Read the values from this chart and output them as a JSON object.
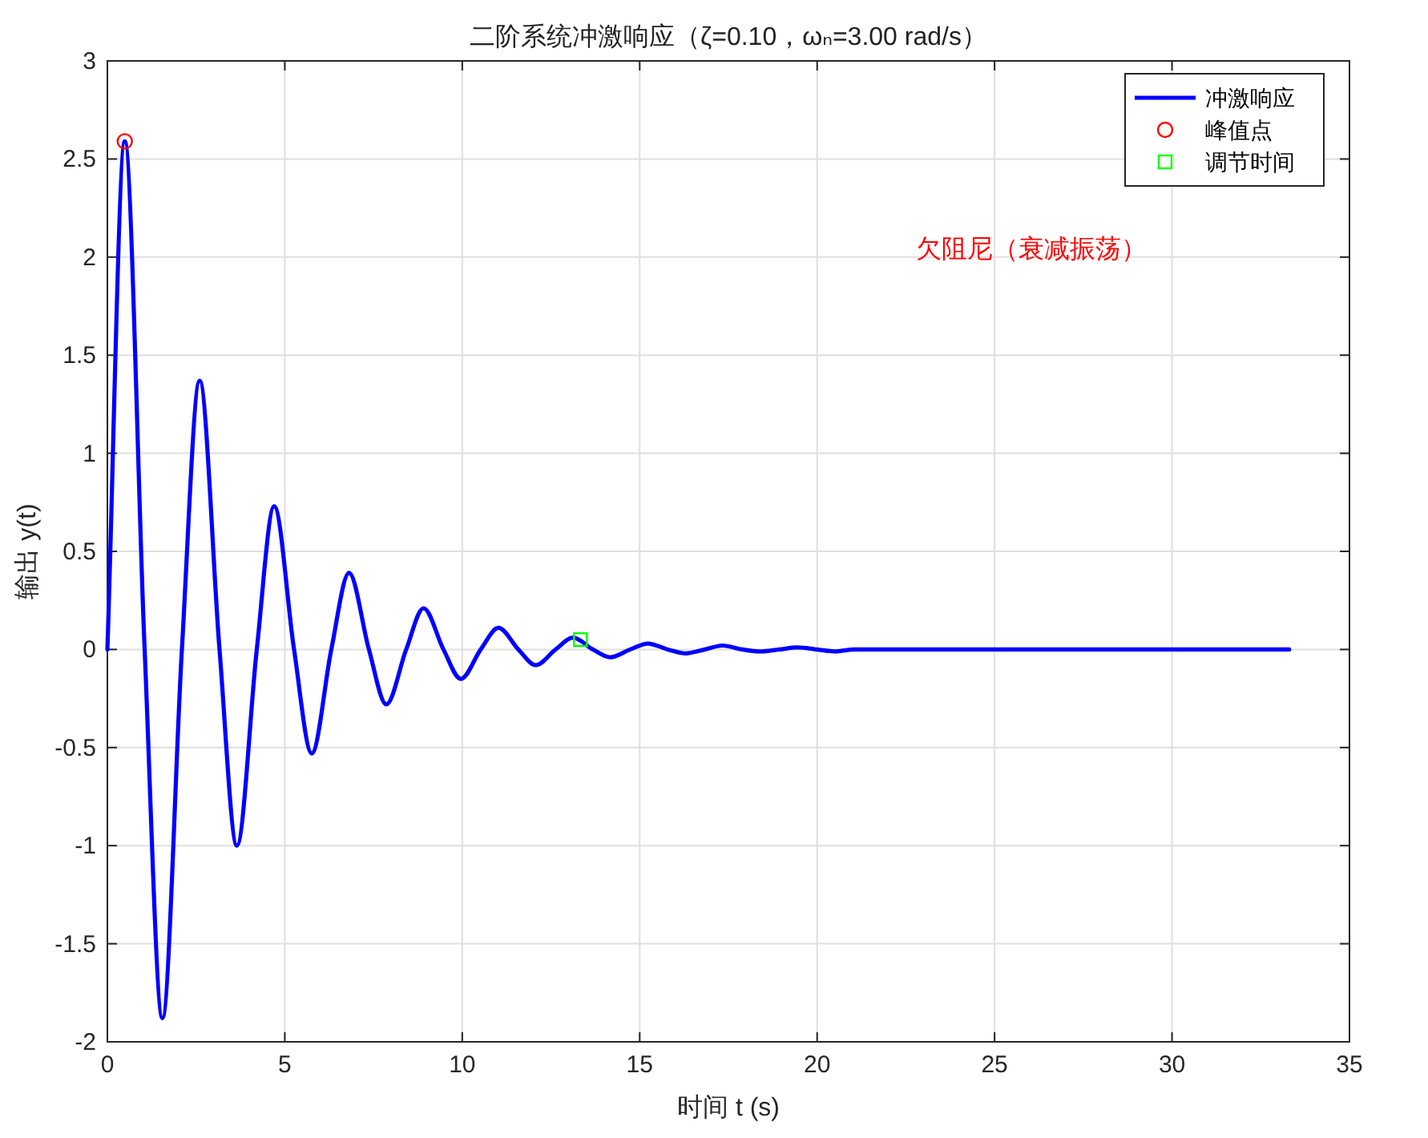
{
  "chart_data": {
    "type": "line",
    "title": "二阶系统冲激响应（ζ=0.10，ωₙ=3.00 rad/s）",
    "xlabel": "时间 t (s)",
    "ylabel": "输出 y(t)",
    "annotations": [
      "欠阻尼（衰减振荡）"
    ],
    "xlim": [
      0,
      35
    ],
    "ylim": [
      -2,
      3
    ],
    "xticks": [
      0,
      5,
      10,
      15,
      20,
      25,
      30,
      35
    ],
    "yticks": [
      -2,
      -1.5,
      -1,
      -0.5,
      0,
      0.5,
      1,
      1.5,
      2,
      2.5,
      3
    ],
    "grid": true,
    "legend": "top right",
    "series": [
      {
        "name": "冲激响应",
        "type": "line",
        "color": "#0000ff",
        "line_style": "solid",
        "marker": "none",
        "x": [
          0,
          0.49,
          1.05,
          1.55,
          2.1,
          2.6,
          3.16,
          3.65,
          4.21,
          4.7,
          5.26,
          5.76,
          6.31,
          6.81,
          7.37,
          7.86,
          8.42,
          8.91,
          9.47,
          9.96,
          10.52,
          11.02,
          11.58,
          12.07,
          12.63,
          13.12,
          13.68,
          14.17,
          14.73,
          15.23,
          15.79,
          16.28,
          16.84,
          17.33,
          17.89,
          18.38,
          18.94,
          19.44,
          19.99,
          20.49,
          21.05,
          33.3
        ],
        "values": [
          0,
          2.59,
          0,
          -1.88,
          0,
          1.37,
          0,
          -1.0,
          0,
          0.73,
          0,
          -0.53,
          0,
          0.39,
          0,
          -0.28,
          0,
          0.21,
          0,
          -0.15,
          0,
          0.11,
          0,
          -0.08,
          0,
          0.06,
          0,
          -0.04,
          0,
          0.03,
          0,
          -0.02,
          0,
          0.02,
          0,
          -0.01,
          0,
          0.01,
          0,
          -0.01,
          0,
          0
        ]
      },
      {
        "name": "峰值点",
        "type": "scatter",
        "color": "#ff0000",
        "marker": "circle",
        "x": [
          0.49
        ],
        "values": [
          2.59
        ]
      },
      {
        "name": "调节时间",
        "type": "scatter",
        "color": "#00ff00",
        "marker": "square",
        "x": [
          13.33
        ],
        "values": [
          0.05
        ]
      }
    ]
  }
}
